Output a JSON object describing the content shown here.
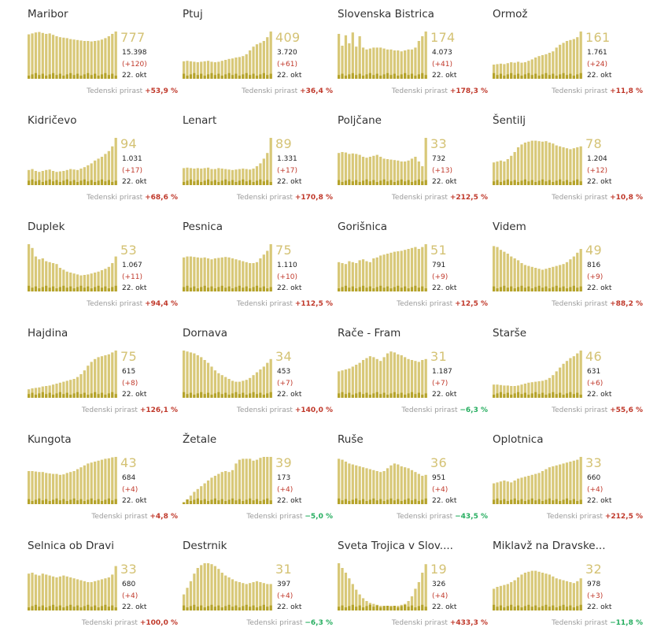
{
  "colors": {
    "bar": "#d8c878",
    "bar_dark": "#b5a32a",
    "name": "#333333",
    "value": "#d4c274",
    "up": "#c0392b",
    "down": "#27ae60"
  },
  "chart_data": {
    "type": "bar",
    "date": "22. okt",
    "growth_label": "Tedenski prirast",
    "panels": [
      {
        "name": "Maribor",
        "active": "777",
        "total": "15.398",
        "delta": "(+120)",
        "growth": "+53,9 %",
        "trend": "up",
        "values": [
          0.94,
          0.96,
          0.98,
          0.99,
          0.97,
          0.95,
          0.96,
          0.93,
          0.9,
          0.88,
          0.87,
          0.86,
          0.84,
          0.83,
          0.82,
          0.81,
          0.8,
          0.8,
          0.79,
          0.8,
          0.81,
          0.83,
          0.86,
          0.9,
          0.95,
          1.0
        ]
      },
      {
        "name": "Ptuj",
        "active": "409",
        "total": "3.720",
        "delta": "(+61)",
        "growth": "+36,4 %",
        "trend": "up",
        "values": [
          0.37,
          0.38,
          0.37,
          0.36,
          0.35,
          0.36,
          0.37,
          0.38,
          0.36,
          0.35,
          0.36,
          0.38,
          0.4,
          0.42,
          0.43,
          0.45,
          0.46,
          0.48,
          0.52,
          0.6,
          0.68,
          0.73,
          0.76,
          0.8,
          0.88,
          1.0
        ]
      },
      {
        "name": "Slovenska Bistrica",
        "active": "174",
        "total": "4.073",
        "delta": "(+41)",
        "growth": "+178,3 %",
        "trend": "up",
        "values": [
          0.95,
          0.7,
          0.92,
          0.75,
          0.98,
          0.68,
          0.9,
          0.66,
          0.62,
          0.64,
          0.66,
          0.66,
          0.66,
          0.64,
          0.62,
          0.62,
          0.6,
          0.6,
          0.58,
          0.6,
          0.62,
          0.62,
          0.66,
          0.8,
          0.9,
          1.0
        ]
      },
      {
        "name": "Ormož",
        "active": "161",
        "total": "1.761",
        "delta": "(+24)",
        "growth": "+11,8 %",
        "trend": "up",
        "values": [
          0.3,
          0.31,
          0.32,
          0.31,
          0.33,
          0.35,
          0.34,
          0.36,
          0.34,
          0.35,
          0.38,
          0.41,
          0.45,
          0.48,
          0.5,
          0.52,
          0.55,
          0.58,
          0.66,
          0.72,
          0.76,
          0.8,
          0.82,
          0.84,
          0.88,
          1.0
        ]
      },
      {
        "name": "Kidričevo",
        "active": "94",
        "total": "1.031",
        "delta": "(+17)",
        "growth": "+68,6 %",
        "trend": "up",
        "values": [
          0.32,
          0.34,
          0.3,
          0.28,
          0.3,
          0.32,
          0.33,
          0.3,
          0.28,
          0.29,
          0.3,
          0.32,
          0.34,
          0.33,
          0.32,
          0.35,
          0.38,
          0.42,
          0.46,
          0.52,
          0.56,
          0.6,
          0.66,
          0.72,
          0.82,
          1.0
        ]
      },
      {
        "name": "Lenart",
        "active": "89",
        "total": "1.331",
        "delta": "(+17)",
        "growth": "+170,8 %",
        "trend": "up",
        "values": [
          0.36,
          0.37,
          0.36,
          0.35,
          0.36,
          0.35,
          0.36,
          0.37,
          0.34,
          0.34,
          0.36,
          0.35,
          0.34,
          0.33,
          0.32,
          0.33,
          0.34,
          0.35,
          0.34,
          0.33,
          0.35,
          0.4,
          0.46,
          0.56,
          0.68,
          1.0
        ]
      },
      {
        "name": "Poljčane",
        "active": "33",
        "total": "732",
        "delta": "(+13)",
        "growth": "+212,5 %",
        "trend": "up",
        "values": [
          0.68,
          0.7,
          0.69,
          0.66,
          0.67,
          0.66,
          0.64,
          0.6,
          0.58,
          0.6,
          0.62,
          0.64,
          0.6,
          0.56,
          0.55,
          0.54,
          0.53,
          0.52,
          0.5,
          0.5,
          0.52,
          0.56,
          0.6,
          0.5,
          0.4,
          1.0
        ]
      },
      {
        "name": "Šentilj",
        "active": "78",
        "total": "1.204",
        "delta": "(+12)",
        "growth": "+10,8 %",
        "trend": "up",
        "values": [
          0.48,
          0.5,
          0.52,
          0.5,
          0.55,
          0.62,
          0.7,
          0.8,
          0.86,
          0.9,
          0.92,
          0.94,
          0.94,
          0.93,
          0.92,
          0.93,
          0.9,
          0.88,
          0.84,
          0.82,
          0.8,
          0.78,
          0.76,
          0.78,
          0.8,
          0.82
        ]
      },
      {
        "name": "Duplek",
        "active": "53",
        "total": "1.067",
        "delta": "(+11)",
        "growth": "+94,4 %",
        "trend": "up",
        "values": [
          1.0,
          0.92,
          0.74,
          0.68,
          0.7,
          0.64,
          0.62,
          0.6,
          0.58,
          0.5,
          0.46,
          0.42,
          0.4,
          0.38,
          0.36,
          0.34,
          0.35,
          0.36,
          0.38,
          0.4,
          0.42,
          0.45,
          0.48,
          0.52,
          0.6,
          0.74
        ]
      },
      {
        "name": "Pesnica",
        "active": "75",
        "total": "1.110",
        "delta": "(+10)",
        "growth": "+112,5 %",
        "trend": "up",
        "values": [
          0.72,
          0.74,
          0.74,
          0.73,
          0.72,
          0.71,
          0.72,
          0.7,
          0.68,
          0.7,
          0.71,
          0.72,
          0.73,
          0.72,
          0.7,
          0.68,
          0.66,
          0.64,
          0.62,
          0.6,
          0.6,
          0.62,
          0.7,
          0.78,
          0.86,
          1.0
        ]
      },
      {
        "name": "Gorišnica",
        "active": "51",
        "total": "791",
        "delta": "(+9)",
        "growth": "+12,5 %",
        "trend": "up",
        "values": [
          0.62,
          0.6,
          0.58,
          0.64,
          0.62,
          0.6,
          0.66,
          0.68,
          0.64,
          0.62,
          0.7,
          0.72,
          0.76,
          0.78,
          0.8,
          0.82,
          0.84,
          0.85,
          0.86,
          0.88,
          0.9,
          0.92,
          0.94,
          0.9,
          0.94,
          1.0
        ]
      },
      {
        "name": "Videm",
        "active": "49",
        "total": "816",
        "delta": "(+9)",
        "growth": "+88,2 %",
        "trend": "up",
        "values": [
          0.96,
          0.94,
          0.88,
          0.84,
          0.8,
          0.74,
          0.7,
          0.66,
          0.6,
          0.56,
          0.54,
          0.52,
          0.5,
          0.48,
          0.46,
          0.48,
          0.5,
          0.52,
          0.54,
          0.56,
          0.58,
          0.62,
          0.68,
          0.74,
          0.82,
          0.9
        ]
      },
      {
        "name": "Hajdina",
        "active": "75",
        "total": "615",
        "delta": "(+8)",
        "growth": "+126,1 %",
        "trend": "up",
        "values": [
          0.18,
          0.2,
          0.21,
          0.22,
          0.24,
          0.25,
          0.26,
          0.28,
          0.3,
          0.32,
          0.34,
          0.36,
          0.38,
          0.4,
          0.44,
          0.5,
          0.58,
          0.68,
          0.76,
          0.82,
          0.86,
          0.88,
          0.9,
          0.92,
          0.96,
          1.0
        ]
      },
      {
        "name": "Dornava",
        "active": "34",
        "total": "453",
        "delta": "(+7)",
        "growth": "+140,0 %",
        "trend": "up",
        "values": [
          1.0,
          0.98,
          0.96,
          0.94,
          0.9,
          0.86,
          0.8,
          0.74,
          0.66,
          0.58,
          0.52,
          0.48,
          0.44,
          0.4,
          0.36,
          0.34,
          0.34,
          0.36,
          0.38,
          0.42,
          0.48,
          0.54,
          0.6,
          0.66,
          0.74,
          0.82
        ]
      },
      {
        "name": "Rače - Fram",
        "active": "31",
        "total": "1.187",
        "delta": "(+7)",
        "growth": "−6,3 %",
        "trend": "down",
        "values": [
          0.56,
          0.58,
          0.6,
          0.62,
          0.66,
          0.7,
          0.74,
          0.8,
          0.84,
          0.88,
          0.86,
          0.82,
          0.78,
          0.86,
          0.94,
          0.98,
          0.96,
          0.92,
          0.9,
          0.86,
          0.82,
          0.8,
          0.78,
          0.76,
          0.8,
          0.82
        ]
      },
      {
        "name": "Starše",
        "active": "46",
        "total": "631",
        "delta": "(+6)",
        "growth": "+55,6 %",
        "trend": "up",
        "values": [
          0.28,
          0.28,
          0.27,
          0.26,
          0.26,
          0.25,
          0.25,
          0.26,
          0.28,
          0.3,
          0.32,
          0.33,
          0.34,
          0.35,
          0.36,
          0.38,
          0.42,
          0.48,
          0.56,
          0.64,
          0.72,
          0.78,
          0.84,
          0.88,
          0.94,
          1.0
        ]
      },
      {
        "name": "Kungota",
        "active": "43",
        "total": "684",
        "delta": "(+4)",
        "growth": "+4,8 %",
        "trend": "up",
        "values": [
          0.7,
          0.7,
          0.69,
          0.68,
          0.68,
          0.66,
          0.65,
          0.64,
          0.64,
          0.62,
          0.63,
          0.66,
          0.68,
          0.7,
          0.74,
          0.78,
          0.82,
          0.86,
          0.88,
          0.9,
          0.92,
          0.94,
          0.96,
          0.97,
          0.99,
          1.0
        ]
      },
      {
        "name": "Žetale",
        "active": "39",
        "total": "173",
        "delta": "(+4)",
        "growth": "−5,0 %",
        "trend": "down",
        "values": [
          0.04,
          0.1,
          0.18,
          0.26,
          0.32,
          0.38,
          0.44,
          0.5,
          0.56,
          0.6,
          0.64,
          0.68,
          0.7,
          0.68,
          0.72,
          0.86,
          0.94,
          0.96,
          0.96,
          0.96,
          0.92,
          0.94,
          0.98,
          1.0,
          1.0,
          1.0
        ]
      },
      {
        "name": "Ruše",
        "active": "36",
        "total": "951",
        "delta": "(+4)",
        "growth": "−43,5 %",
        "trend": "down",
        "values": [
          0.96,
          0.94,
          0.9,
          0.86,
          0.84,
          0.82,
          0.8,
          0.78,
          0.76,
          0.74,
          0.72,
          0.7,
          0.68,
          0.7,
          0.76,
          0.82,
          0.86,
          0.84,
          0.8,
          0.78,
          0.76,
          0.72,
          0.68,
          0.64,
          0.6,
          0.62
        ]
      },
      {
        "name": "Oplotnica",
        "active": "33",
        "total": "660",
        "delta": "(+4)",
        "growth": "+212,5 %",
        "trend": "up",
        "values": [
          0.44,
          0.46,
          0.48,
          0.5,
          0.48,
          0.46,
          0.5,
          0.54,
          0.56,
          0.58,
          0.6,
          0.62,
          0.64,
          0.66,
          0.7,
          0.74,
          0.78,
          0.8,
          0.82,
          0.84,
          0.86,
          0.88,
          0.9,
          0.92,
          0.94,
          1.0
        ]
      },
      {
        "name": "Selnica ob Dravi",
        "active": "33",
        "total": "680",
        "delta": "(+4)",
        "growth": "+100,0 %",
        "trend": "up",
        "values": [
          0.78,
          0.8,
          0.76,
          0.74,
          0.78,
          0.76,
          0.74,
          0.72,
          0.7,
          0.72,
          0.74,
          0.72,
          0.7,
          0.68,
          0.66,
          0.64,
          0.62,
          0.6,
          0.6,
          0.62,
          0.64,
          0.66,
          0.68,
          0.7,
          0.76,
          0.94
        ]
      },
      {
        "name": "Destrnik",
        "active": "31",
        "total": "397",
        "delta": "(+4)",
        "growth": "−6,3 %",
        "trend": "down",
        "values": [
          0.34,
          0.48,
          0.62,
          0.78,
          0.9,
          0.96,
          1.0,
          1.0,
          0.98,
          0.94,
          0.88,
          0.8,
          0.74,
          0.7,
          0.66,
          0.62,
          0.6,
          0.58,
          0.56,
          0.58,
          0.6,
          0.62,
          0.6,
          0.58,
          0.56,
          0.56
        ]
      },
      {
        "name": "Sveta Trojica v Slov....",
        "active": "19",
        "total": "326",
        "delta": "(+4)",
        "growth": "+433,3 %",
        "trend": "up",
        "values": [
          1.0,
          0.9,
          0.8,
          0.68,
          0.56,
          0.44,
          0.34,
          0.26,
          0.2,
          0.16,
          0.14,
          0.12,
          0.1,
          0.1,
          0.1,
          0.1,
          0.1,
          0.1,
          0.12,
          0.14,
          0.2,
          0.3,
          0.46,
          0.6,
          0.8,
          0.98
        ]
      },
      {
        "name": "Miklavž na Dravske...",
        "active": "32",
        "total": "978",
        "delta": "(+3)",
        "growth": "−11,8 %",
        "trend": "down",
        "values": [
          0.46,
          0.5,
          0.52,
          0.54,
          0.56,
          0.6,
          0.64,
          0.7,
          0.76,
          0.8,
          0.82,
          0.84,
          0.84,
          0.82,
          0.8,
          0.78,
          0.76,
          0.72,
          0.68,
          0.66,
          0.64,
          0.62,
          0.6,
          0.58,
          0.62,
          0.68
        ]
      }
    ]
  }
}
